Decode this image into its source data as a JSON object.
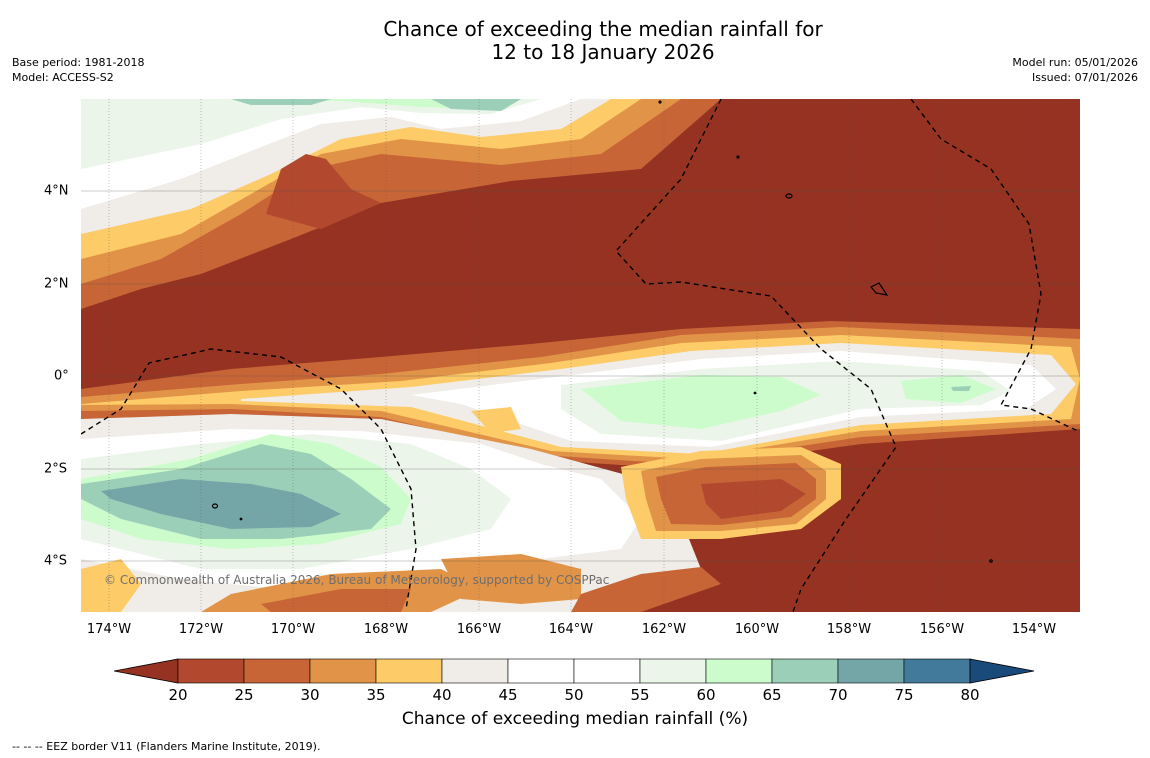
{
  "title": {
    "line1": "Chance of exceeding the median rainfall for",
    "line2": "12 to 18 January 2026"
  },
  "meta": {
    "base_period": "Base period: 1981-2018",
    "model": "Model: ACCESS-S2",
    "model_run": "Model run: 05/01/2026",
    "issued": "Issued: 07/01/2026"
  },
  "map": {
    "x_ticks": [
      "174°W",
      "172°W",
      "170°W",
      "168°W",
      "166°W",
      "164°W",
      "162°W",
      "160°W",
      "158°W",
      "156°W",
      "154°W"
    ],
    "y_ticks": [
      "4°N",
      "2°N",
      "0°",
      "2°S",
      "4°S"
    ],
    "copyright": "© Commonwealth of Australia 2026, Bureau of Meteorology, supported by COSPPac"
  },
  "colorbar": {
    "ticks": [
      "20",
      "25",
      "30",
      "35",
      "40",
      "45",
      "50",
      "55",
      "60",
      "65",
      "70",
      "75",
      "80"
    ],
    "colors": [
      "#953221",
      "#b2492e",
      "#c86537",
      "#e19447",
      "#fdcb67",
      "#f0ece8",
      "#ffffff",
      "#ffffff",
      "#ecf5ea",
      "#ccfccc",
      "#9ccfb8",
      "#74a6a8",
      "#417a9b",
      "#1a4a7a"
    ],
    "title": "Chance of exceeding median rainfall (%)"
  },
  "footnote": "--  --  -- EEZ border V11 (Flanders Marine Institute, 2019)."
}
